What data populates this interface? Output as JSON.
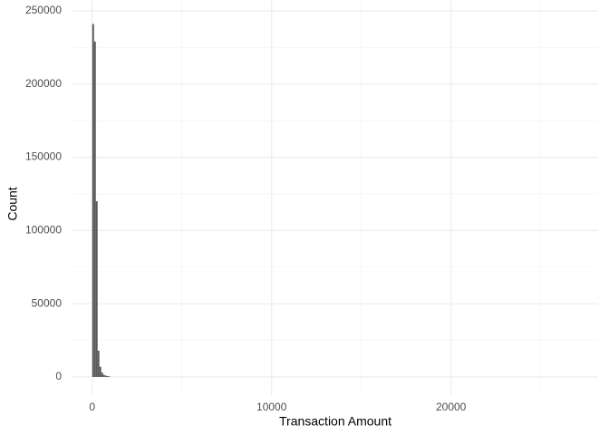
{
  "chart_data": {
    "type": "histogram",
    "x_label": "Transaction Amount",
    "y_label": "Count",
    "bins": [
      0,
      100,
      200,
      300,
      400,
      500,
      600,
      700,
      800,
      900,
      1000
    ],
    "values": [
      241000,
      229000,
      120000,
      18000,
      7000,
      3000,
      1500,
      900,
      600,
      400
    ],
    "color": "#595959",
    "xlim": [
      -1100,
      28200
    ],
    "xticks": [
      0,
      10000,
      20000
    ],
    "xminor": [
      5000,
      15000,
      25000
    ],
    "ylim": [
      -12400,
      257400
    ],
    "yticks": [
      0,
      50000,
      100000,
      150000,
      200000,
      250000
    ],
    "yminor": [
      25000,
      75000,
      125000,
      175000,
      225000
    ],
    "grid": true
  }
}
